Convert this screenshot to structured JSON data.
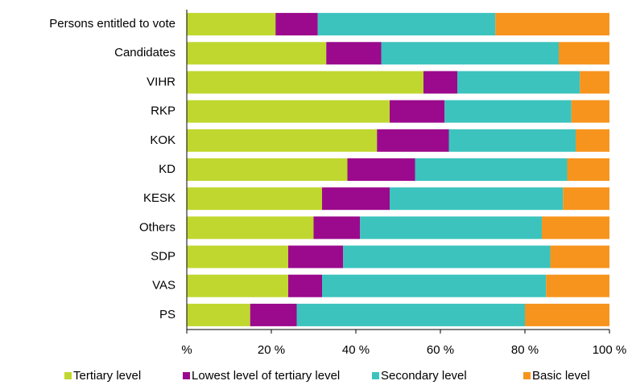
{
  "chart_data": {
    "type": "stacked-bar-horizontal",
    "categories": [
      "Persons entitled to vote",
      "Candidates",
      "VIHR",
      "RKP",
      "KOK",
      "KD",
      "KESK",
      "Others",
      "SDP",
      "VAS",
      "PS"
    ],
    "series": [
      {
        "name": "Tertiary level",
        "color": "#c0d72f",
        "values": [
          21,
          33,
          56,
          48,
          45,
          38,
          32,
          30,
          24,
          24,
          15
        ]
      },
      {
        "name": "Lowest level of tertiary level",
        "color": "#9b0a8c",
        "values": [
          10,
          13,
          8,
          13,
          17,
          16,
          16,
          11,
          13,
          8,
          11
        ]
      },
      {
        "name": "Secondary level",
        "color": "#3cc3be",
        "values": [
          42,
          42,
          29,
          30,
          30,
          36,
          41,
          43,
          49,
          53,
          54
        ]
      },
      {
        "name": "Basic level",
        "color": "#f7941d",
        "values": [
          27,
          12,
          7,
          9,
          8,
          10,
          11,
          16,
          14,
          15,
          20
        ]
      }
    ],
    "xlim": [
      0,
      100
    ],
    "xticks": [
      {
        "value": 0,
        "label": "%"
      },
      {
        "value": 20,
        "label": "20 %"
      },
      {
        "value": 40,
        "label": "40 %"
      },
      {
        "value": 60,
        "label": "60 %"
      },
      {
        "value": 80,
        "label": "80 %"
      },
      {
        "value": 100,
        "label": "100 %"
      }
    ],
    "legend": "bottom"
  }
}
